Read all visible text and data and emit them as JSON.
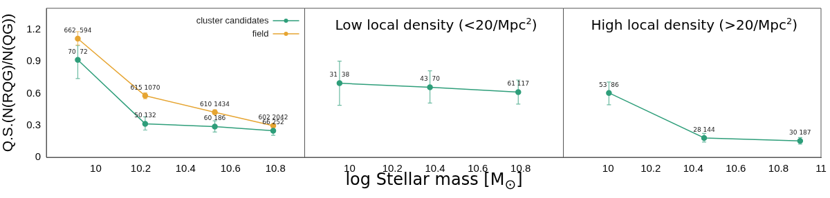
{
  "chart_data": [
    {
      "type": "line",
      "ylabel": "Q.S.(N(RQG)/N(QG))",
      "x": [
        9.92,
        10.22,
        10.53,
        10.79
      ],
      "series": [
        {
          "name": "cluster candidates",
          "color": "#2e9e7a",
          "values": [
            0.916,
            0.315,
            0.288,
            0.25
          ],
          "errors": [
            [
              0.74,
              1.05
            ],
            [
              0.256,
              0.38
            ],
            [
              0.237,
              0.343
            ],
            [
              0.207,
              0.29
            ]
          ]
        },
        {
          "name": "field",
          "color": "#e6a532",
          "values": [
            1.115,
            0.578,
            0.423,
            0.296
          ],
          "errors": [
            [
              1.054,
              1.18
            ],
            [
              0.55,
              0.605
            ],
            [
              0.404,
              0.447
            ],
            [
              0.285,
              0.307
            ]
          ]
        }
      ],
      "annotations": [
        {
          "text": "70  72",
          "x": 9.92,
          "y": 0.916
        },
        {
          "text": "50 132",
          "x": 10.22,
          "y": 0.315
        },
        {
          "text": "60 186",
          "x": 10.53,
          "y": 0.288
        },
        {
          "text": "66 252",
          "x": 10.79,
          "y": 0.25
        },
        {
          "text": "662  594",
          "x": 9.92,
          "y": 1.115
        },
        {
          "text": "615 1070",
          "x": 10.22,
          "y": 0.578
        },
        {
          "text": "610 1434",
          "x": 10.53,
          "y": 0.423
        },
        {
          "text": "602 2042",
          "x": 10.79,
          "y": 0.296
        }
      ],
      "xlim": [
        9.78,
        10.93
      ],
      "xticks": [
        10,
        10.2,
        10.4,
        10.6,
        10.8
      ],
      "ylim": [
        0,
        1.4
      ],
      "yticks": [
        0,
        0.3,
        0.6,
        0.9,
        1.2
      ],
      "grid": false,
      "legend": "top right",
      "marker": "circle",
      "line_style": "solid"
    },
    {
      "type": "line",
      "title": "Low local density (<20/Mpc$^{2}$)",
      "xlabel": "log Stellar mass [M$_{⊙}$]",
      "x": [
        9.953,
        10.376,
        10.789
      ],
      "series": [
        {
          "color": "#2e9e7a",
          "values": [
            0.696,
            0.658,
            0.612
          ],
          "errors": [
            [
              0.489,
              0.904
            ],
            [
              0.51,
              0.813
            ],
            [
              0.5,
              0.726
            ]
          ]
        }
      ],
      "annotations": [
        {
          "text": "31  38",
          "x": 9.953,
          "y": 0.696
        },
        {
          "text": "43  70",
          "x": 10.376,
          "y": 0.658
        },
        {
          "text": "61 117",
          "x": 10.789,
          "y": 0.612
        }
      ],
      "xlim": [
        9.79,
        11
      ],
      "xticks": [
        10,
        10.2,
        10.4,
        10.6,
        10.8
      ],
      "ylim": [
        0,
        1.4
      ],
      "yticks": [
        0,
        0.3,
        0.6,
        0.9,
        1.2
      ],
      "tick_labels": "x",
      "grid": false,
      "legend": false,
      "marker": "circle",
      "line_style": "solid"
    },
    {
      "type": "line",
      "title": "High local density (>20/Mpc$^{2}$)",
      "x": [
        10.004,
        10.451,
        10.902
      ],
      "series": [
        {
          "color": "#2e9e7a",
          "values": [
            0.605,
            0.182,
            0.154
          ],
          "errors": [
            [
              0.493,
              0.707
            ],
            [
              0.144,
              0.224
            ],
            [
              0.123,
              0.186
            ]
          ]
        }
      ],
      "annotations": [
        {
          "text": "53  86",
          "x": 10.004,
          "y": 0.605
        },
        {
          "text": "28 144",
          "x": 10.451,
          "y": 0.182
        },
        {
          "text": "30 187",
          "x": 10.902,
          "y": 0.154
        }
      ],
      "xlim": [
        9.79,
        11
      ],
      "xticks": [
        10,
        10.2,
        10.4,
        10.6,
        10.8,
        11
      ],
      "ylim": [
        0,
        1.4
      ],
      "yticks": [
        0,
        0.3,
        0.6,
        0.9,
        1.2
      ],
      "tick_labels": "x",
      "grid": false,
      "legend": false,
      "marker": "circle",
      "line_style": "solid"
    }
  ]
}
